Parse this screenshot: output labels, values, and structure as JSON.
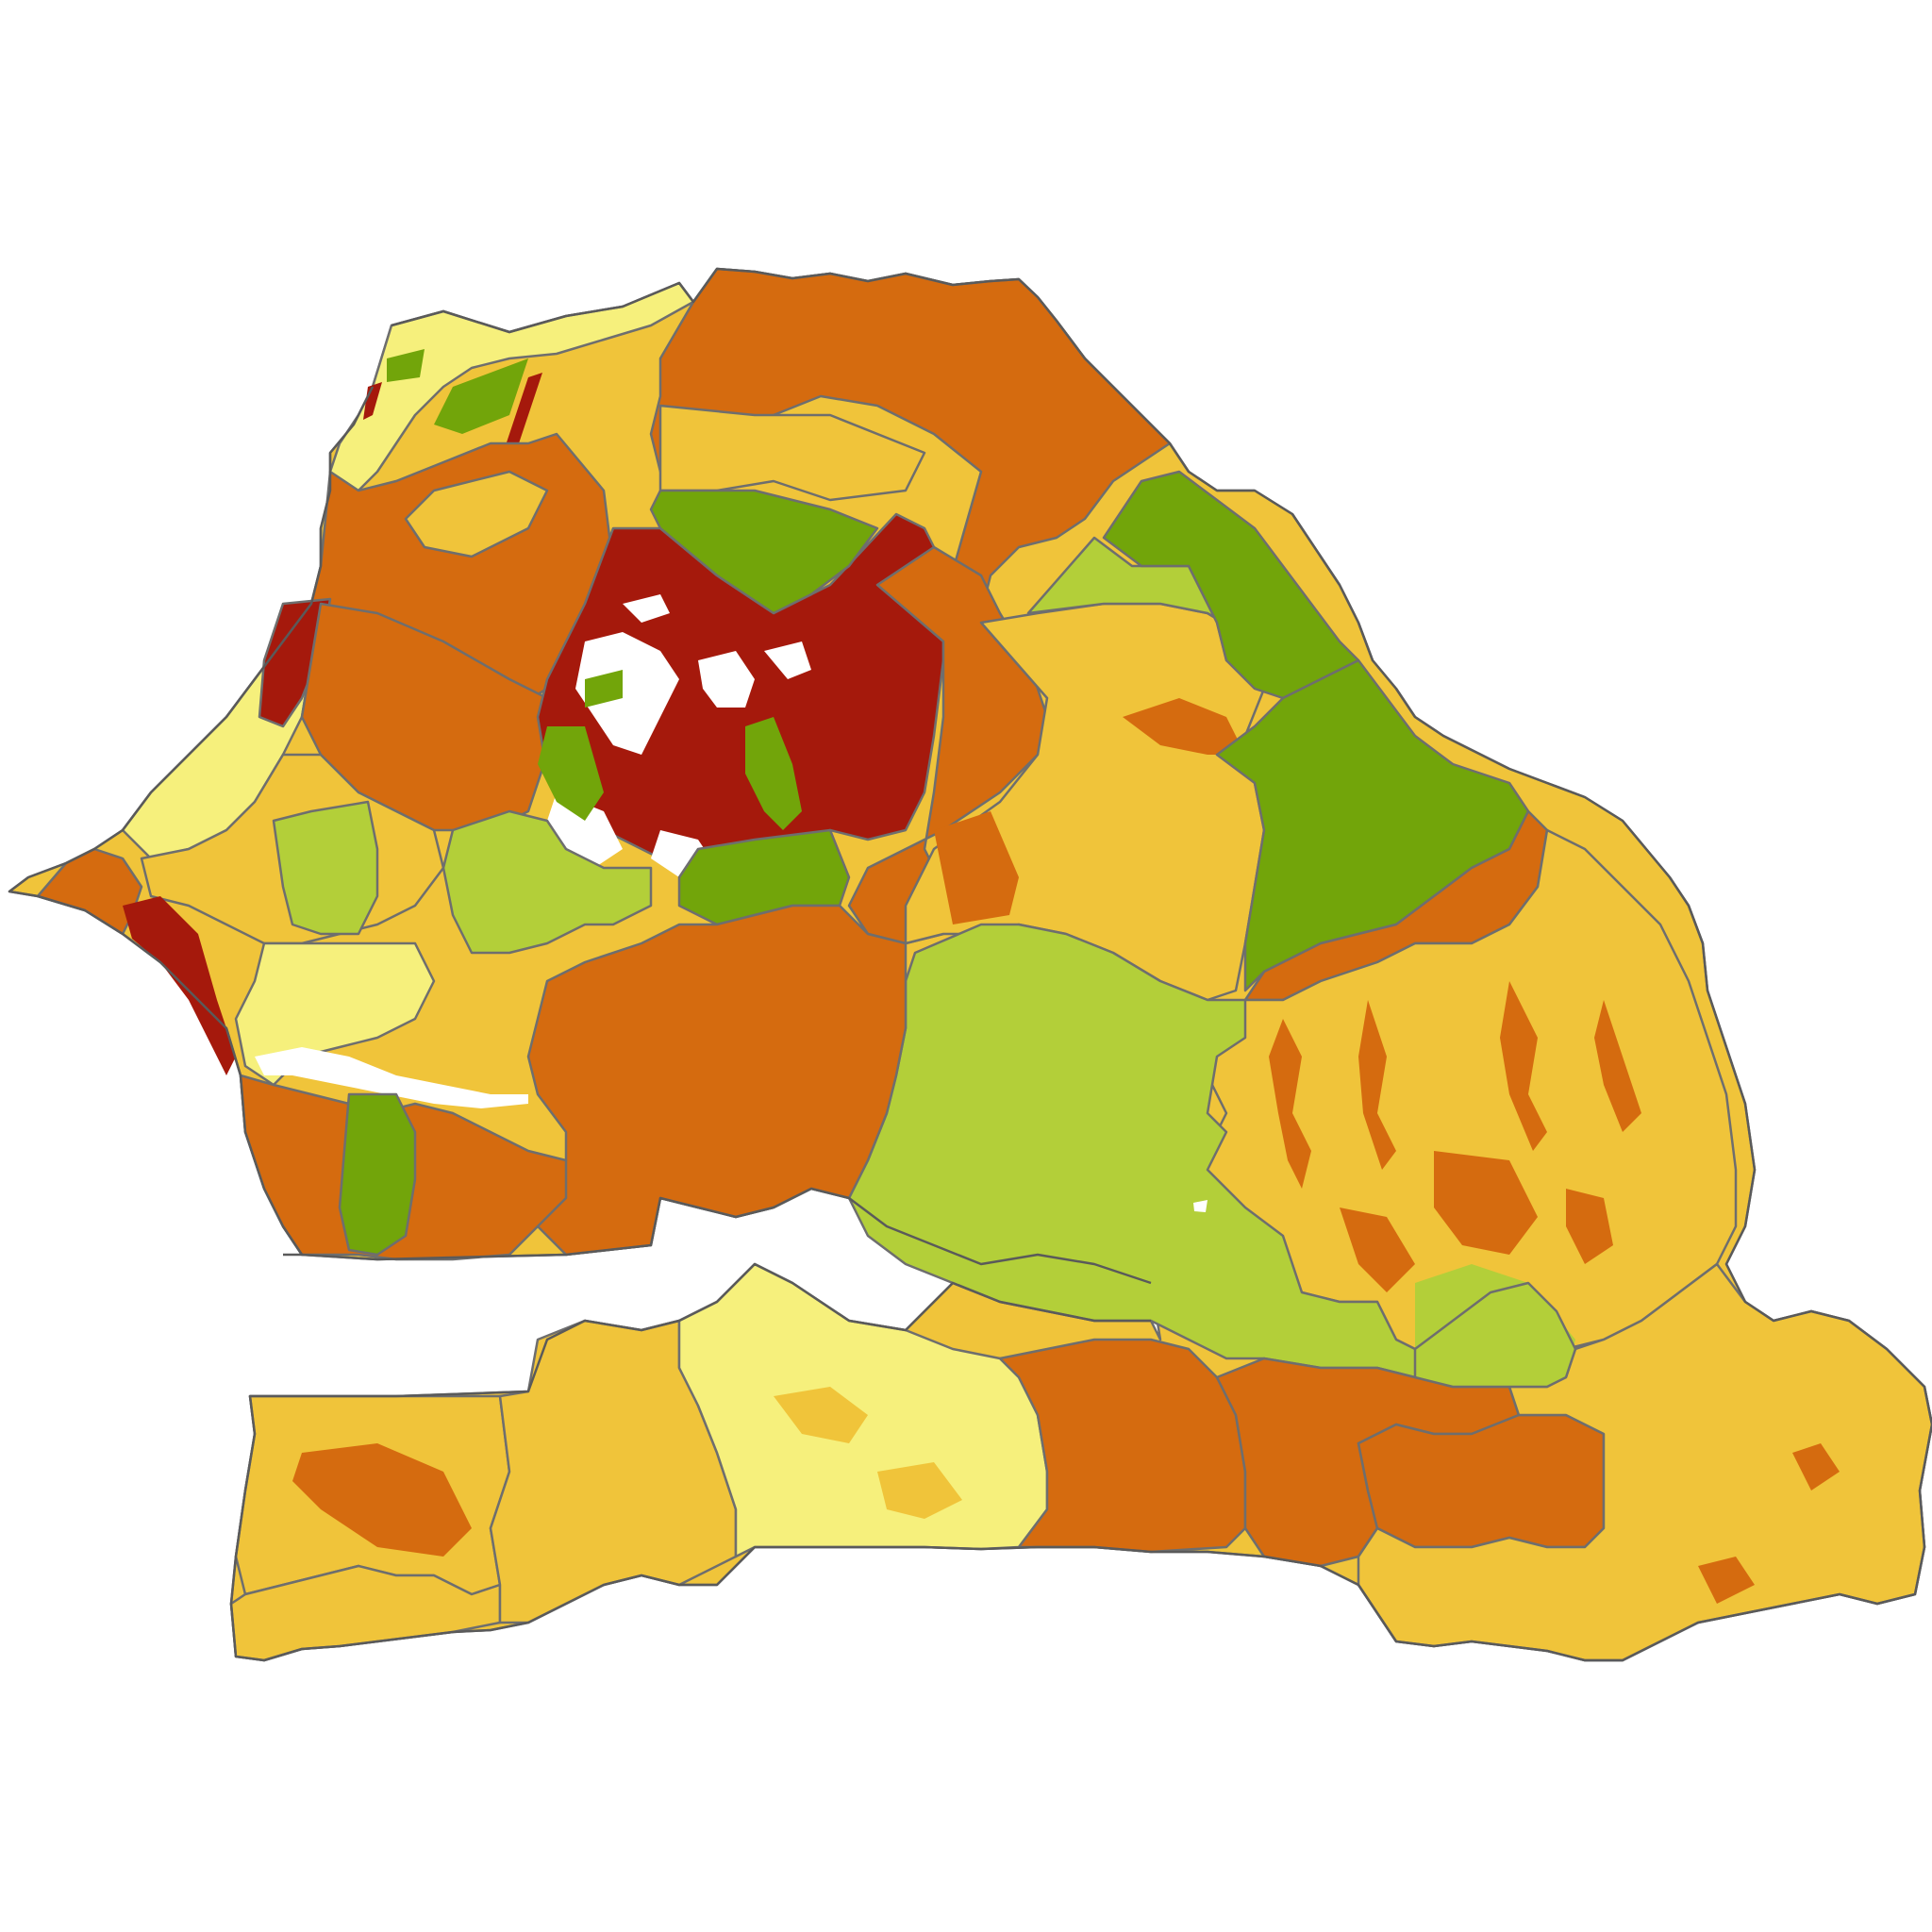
{
  "map": {
    "colors": {
      "pale_yellow": "#f6f07c",
      "yellow": "#f0c43a",
      "orange": "#d56b0f",
      "dark_red": "#a5190c",
      "dark_green": "#72a50a",
      "light_green": "#b3cf39",
      "boundary": "#6e6e6e",
      "water": "#ffffff"
    },
    "zones": [
      {
        "name": "northwest-coast-pale",
        "class": "pale_yellow"
      },
      {
        "name": "northwest-coast-yellow",
        "class": "yellow"
      },
      {
        "name": "north-valley-orange",
        "class": "orange"
      },
      {
        "name": "north-valley-yellow",
        "class": "yellow"
      },
      {
        "name": "northwest-orange",
        "class": "orange"
      },
      {
        "name": "coastal-strip",
        "class": "pale_yellow"
      },
      {
        "name": "coastal-red-patch",
        "class": "dark_red"
      },
      {
        "name": "west-orange",
        "class": "orange"
      },
      {
        "name": "west-yellow",
        "class": "yellow"
      },
      {
        "name": "central-red",
        "class": "dark_red"
      },
      {
        "name": "central-green-north",
        "class": "dark_green"
      },
      {
        "name": "central-green-south",
        "class": "dark_green"
      },
      {
        "name": "central-east-orange",
        "class": "orange"
      },
      {
        "name": "central-east-yellow",
        "class": "yellow"
      },
      {
        "name": "northeast-light-green",
        "class": "light_green"
      },
      {
        "name": "northeast-dark-green",
        "class": "dark_green"
      },
      {
        "name": "east-dark-green",
        "class": "dark_green"
      },
      {
        "name": "east-orange",
        "class": "orange"
      },
      {
        "name": "southeast-yellow",
        "class": "yellow"
      },
      {
        "name": "central-light-green",
        "class": "light_green"
      },
      {
        "name": "south-central-orange",
        "class": "orange"
      },
      {
        "name": "west-light-green-a",
        "class": "light_green"
      },
      {
        "name": "west-light-green-b",
        "class": "light_green"
      },
      {
        "name": "cape-peninsula",
        "class": "orange"
      },
      {
        "name": "petite-cote-pale",
        "class": "pale_yellow"
      },
      {
        "name": "saloum-orange",
        "class": "orange"
      },
      {
        "name": "saloum-green",
        "class": "dark_green"
      },
      {
        "name": "casamance-west-yellow",
        "class": "yellow"
      },
      {
        "name": "casamance-central-yellow",
        "class": "yellow"
      },
      {
        "name": "casamance-pale",
        "class": "pale_yellow"
      },
      {
        "name": "casamance-east-orange",
        "class": "orange"
      },
      {
        "name": "kolda-orange",
        "class": "orange"
      },
      {
        "name": "tambacounda-south-orange",
        "class": "orange"
      },
      {
        "name": "kedougou-yellow",
        "class": "yellow"
      },
      {
        "name": "faleme-light-green",
        "class": "light_green"
      }
    ]
  }
}
